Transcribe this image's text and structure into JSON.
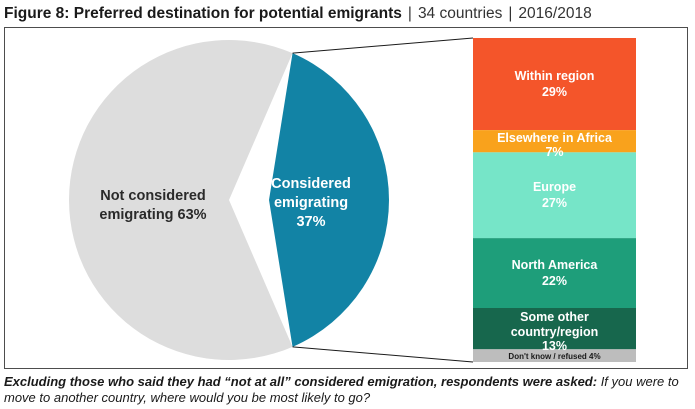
{
  "header": {
    "title": "Figure 8: Preferred destination for potential emigrants",
    "separator": "|",
    "scope": "34 countries",
    "period": "2016/2018"
  },
  "chart_data": [
    {
      "type": "pie",
      "labels": [
        "Not considered emigrating 63%",
        "Considered emigrating 37%"
      ],
      "values": [
        63,
        37
      ],
      "colors": [
        "#dddddd",
        "#1283a5"
      ]
    },
    {
      "type": "bar",
      "stacked": true,
      "categories": [
        "Within region",
        "Elsewhere in Africa",
        "Europe",
        "North America",
        "Some other country/region",
        "Don't know / refused"
      ],
      "value_labels": [
        "29%",
        "7%",
        "27%",
        "22%",
        "13%",
        "4%"
      ],
      "values": [
        29,
        7,
        27,
        22,
        13,
        4
      ],
      "colors": [
        "#f4552a",
        "#f9a21c",
        "#76e5c8",
        "#1e9e7a",
        "#17674d",
        "#bdbdbd"
      ]
    }
  ],
  "footnote": {
    "lead": "Excluding those who said they had “not at all” considered emigration, respondents were asked:",
    "question": " If you were to move to another country, where would you be most likely to go?"
  }
}
